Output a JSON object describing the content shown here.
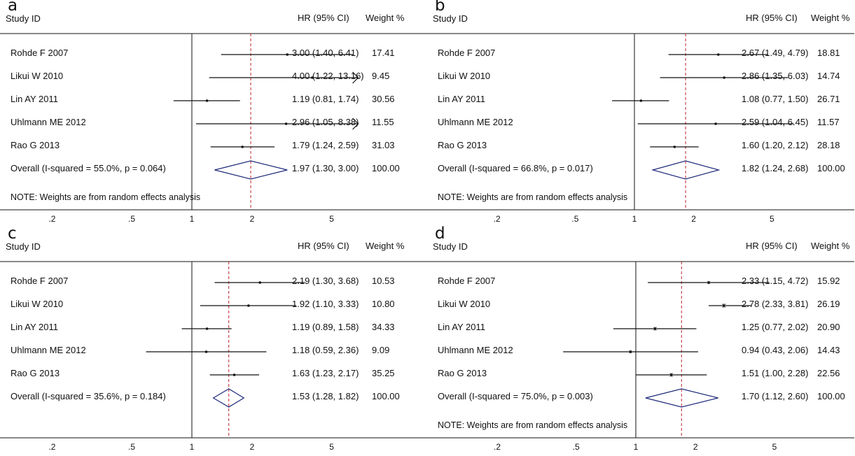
{
  "chart_data": [
    {
      "type": "forest",
      "panel_label": "a",
      "col_study": "Study ID",
      "col_hr": "HR (95% CI)",
      "col_weight": "Weight %",
      "x_scale": "log",
      "null_line": 1,
      "pooled_line": 1.97,
      "xticks": [
        0.2,
        0.5,
        1,
        2,
        5
      ],
      "xtick_labels": [
        ".2",
        ".5",
        "1",
        "2",
        "5"
      ],
      "studies": [
        {
          "study": "Rohde F 2007",
          "hr": 3.0,
          "lo": 1.4,
          "hi": 6.41,
          "hr_text": "3.00 (1.40, 6.41)",
          "weight": "17.41"
        },
        {
          "study": "Likui W 2010",
          "hr": 4.0,
          "lo": 1.22,
          "hi": 13.16,
          "hr_text": "4.00 (1.22, 13.16)",
          "weight": "9.45"
        },
        {
          "study": "Lin AY 2011",
          "hr": 1.19,
          "lo": 0.81,
          "hi": 1.74,
          "hr_text": "1.19 (0.81, 1.74)",
          "weight": "30.56"
        },
        {
          "study": "Uhlmann ME 2012",
          "hr": 2.96,
          "lo": 1.05,
          "hi": 8.38,
          "hr_text": "2.96 (1.05, 8.38)",
          "weight": "11.55"
        },
        {
          "study": "Rao G 2013",
          "hr": 1.79,
          "lo": 1.24,
          "hi": 2.59,
          "hr_text": "1.79 (1.24, 2.59)",
          "weight": "31.03"
        }
      ],
      "overall": {
        "label": "Overall  (I-squared = 55.0%, p = 0.064)",
        "hr": 1.97,
        "lo": 1.3,
        "hi": 3.0,
        "hr_text": "1.97 (1.30, 3.00)",
        "weight": "100.00"
      },
      "note": "NOTE: Weights are from random effects analysis"
    },
    {
      "type": "forest",
      "panel_label": "b",
      "col_study": "Study ID",
      "col_hr": "HR (95% CI)",
      "col_weight": "Weight %",
      "x_scale": "log",
      "null_line": 1,
      "pooled_line": 1.82,
      "xticks": [
        0.2,
        0.5,
        1,
        2,
        5
      ],
      "xtick_labels": [
        ".2",
        ".5",
        "1",
        "2",
        "5"
      ],
      "studies": [
        {
          "study": "Rohde F 2007",
          "hr": 2.67,
          "lo": 1.49,
          "hi": 4.79,
          "hr_text": "2.67 (1.49, 4.79)",
          "weight": "18.81"
        },
        {
          "study": "Likui W 2010",
          "hr": 2.86,
          "lo": 1.35,
          "hi": 6.03,
          "hr_text": "2.86 (1.35, 6.03)",
          "weight": "14.74"
        },
        {
          "study": "Lin AY 2011",
          "hr": 1.08,
          "lo": 0.77,
          "hi": 1.5,
          "hr_text": "1.08 (0.77, 1.50)",
          "weight": "26.71"
        },
        {
          "study": "Uhlmann ME 2012",
          "hr": 2.59,
          "lo": 1.04,
          "hi": 6.45,
          "hr_text": "2.59 (1.04, 6.45)",
          "weight": "11.57"
        },
        {
          "study": "Rao G 2013",
          "hr": 1.6,
          "lo": 1.2,
          "hi": 2.12,
          "hr_text": "1.60 (1.20, 2.12)",
          "weight": "28.18"
        }
      ],
      "overall": {
        "label": "Overall  (I-squared = 66.8%, p = 0.017)",
        "hr": 1.82,
        "lo": 1.24,
        "hi": 2.68,
        "hr_text": "1.82 (1.24, 2.68)",
        "weight": "100.00"
      },
      "note": "NOTE: Weights are from random effects analysis"
    },
    {
      "type": "forest",
      "panel_label": "c",
      "col_study": "Study ID",
      "col_hr": "HR (95% CI)",
      "col_weight": "Weight %",
      "x_scale": "log",
      "null_line": 1,
      "pooled_line": 1.53,
      "xticks": [
        0.2,
        0.5,
        1,
        2,
        5
      ],
      "xtick_labels": [
        ".2",
        ".5",
        "1",
        "2",
        "5"
      ],
      "studies": [
        {
          "study": "Rohde F 2007",
          "hr": 2.19,
          "lo": 1.3,
          "hi": 3.68,
          "hr_text": "2.19 (1.30, 3.68)",
          "weight": "10.53"
        },
        {
          "study": "Likui W 2010",
          "hr": 1.92,
          "lo": 1.1,
          "hi": 3.33,
          "hr_text": "1.92 (1.10, 3.33)",
          "weight": "10.80"
        },
        {
          "study": "Lin AY 2011",
          "hr": 1.19,
          "lo": 0.89,
          "hi": 1.58,
          "hr_text": "1.19 (0.89, 1.58)",
          "weight": "34.33"
        },
        {
          "study": "Uhlmann ME 2012",
          "hr": 1.18,
          "lo": 0.59,
          "hi": 2.36,
          "hr_text": "1.18 (0.59, 2.36)",
          "weight": "9.09"
        },
        {
          "study": "Rao G 2013",
          "hr": 1.63,
          "lo": 1.23,
          "hi": 2.17,
          "hr_text": "1.63 (1.23, 2.17)",
          "weight": "35.25"
        }
      ],
      "overall": {
        "label": "Overall  (I-squared = 35.6%, p = 0.184)",
        "hr": 1.53,
        "lo": 1.28,
        "hi": 1.82,
        "hr_text": "1.53 (1.28, 1.82)",
        "weight": "100.00"
      },
      "note": ""
    },
    {
      "type": "forest",
      "panel_label": "d",
      "col_study": "Study ID",
      "col_hr": "HR (95% CI)",
      "col_weight": "Weight %",
      "x_scale": "log",
      "null_line": 1,
      "pooled_line": 1.7,
      "xticks": [
        0.2,
        0.5,
        1,
        2,
        5
      ],
      "xtick_labels": [
        ".2",
        ".5",
        "1",
        "2",
        "5"
      ],
      "studies": [
        {
          "study": "Rohde F 2007",
          "hr": 2.33,
          "lo": 1.15,
          "hi": 4.72,
          "hr_text": "2.33 (1.15, 4.72)",
          "weight": "15.92"
        },
        {
          "study": "Likui W 2010",
          "hr": 2.78,
          "lo": 2.33,
          "hi": 3.81,
          "hr_text": "2.78 (2.33, 3.81)",
          "weight": "26.19"
        },
        {
          "study": "Lin AY 2011",
          "hr": 1.25,
          "lo": 0.77,
          "hi": 2.02,
          "hr_text": "1.25 (0.77, 2.02)",
          "weight": "20.90"
        },
        {
          "study": "Uhlmann ME 2012",
          "hr": 0.94,
          "lo": 0.43,
          "hi": 2.06,
          "hr_text": "0.94 (0.43, 2.06)",
          "weight": "14.43"
        },
        {
          "study": "Rao G 2013",
          "hr": 1.51,
          "lo": 1.0,
          "hi": 2.28,
          "hr_text": "1.51 (1.00, 2.28)",
          "weight": "22.56"
        }
      ],
      "overall": {
        "label": "Overall  (I-squared = 75.0%, p = 0.003)",
        "hr": 1.7,
        "lo": 1.12,
        "hi": 2.6,
        "hr_text": "1.70 (1.12, 2.60)",
        "weight": "100.00"
      },
      "note": "NOTE: Weights are from random effects analysis"
    }
  ],
  "colors": {
    "ink": "#111111",
    "diamond": "#1f2a7a",
    "pooled_line": "#c0202a"
  }
}
